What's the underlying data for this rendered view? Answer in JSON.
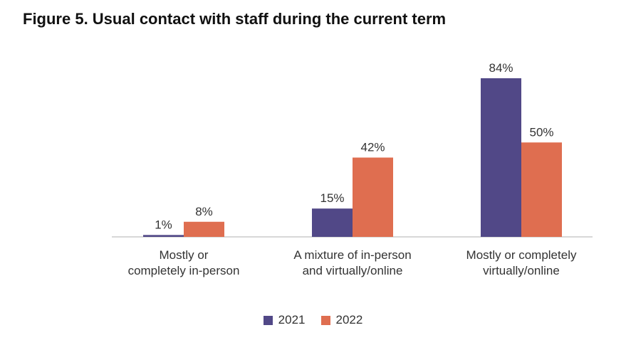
{
  "title": "Figure 5. Usual contact with staff during the current term",
  "chart_data": {
    "type": "bar",
    "categories": [
      "Mostly or completely in-person",
      "A mixture of in-person and virtually/online",
      "Mostly or completely virtually/online"
    ],
    "category_lines": [
      [
        "Mostly or",
        "completely in-person"
      ],
      [
        "A mixture of in-person",
        "and virtually/online"
      ],
      [
        "Mostly or completely",
        "virtually/online"
      ]
    ],
    "series": [
      {
        "name": "2021",
        "values": [
          1,
          15,
          84
        ],
        "labels": [
          "1%",
          "15%",
          "84%"
        ],
        "color": "#514887"
      },
      {
        "name": "2022",
        "values": [
          8,
          42,
          50
        ],
        "labels": [
          "8%",
          "42%",
          "50%"
        ],
        "color": "#DF6E50"
      }
    ],
    "ylim": [
      0,
      84
    ],
    "grid": false,
    "legend_position": "bottom"
  }
}
